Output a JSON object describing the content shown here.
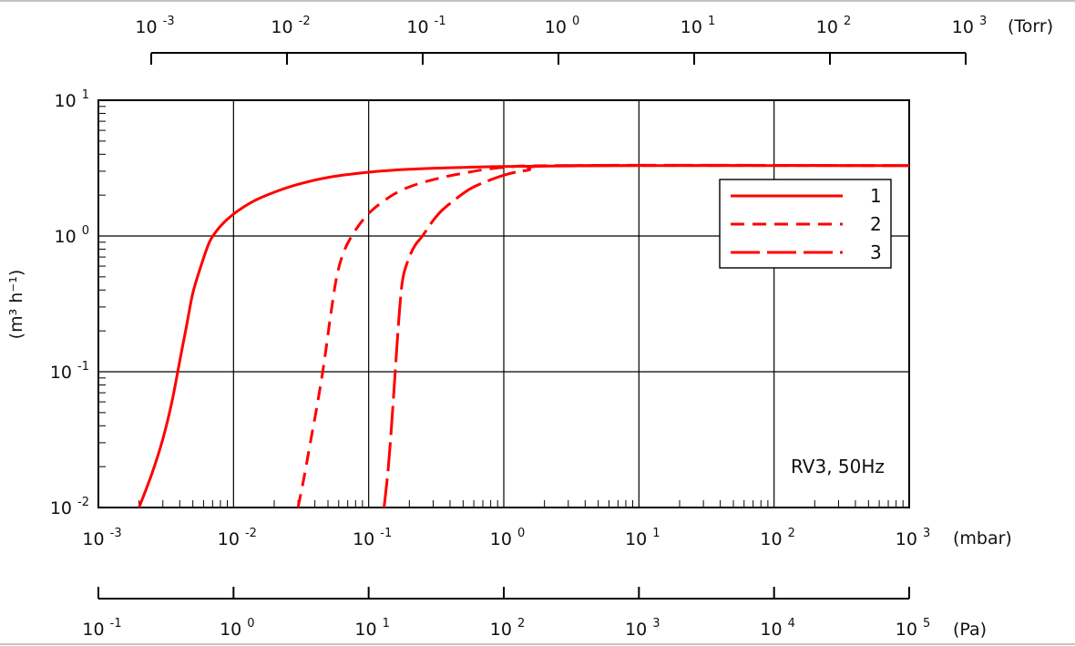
{
  "chart_data": {
    "type": "line",
    "title": "",
    "annotation": "RV3, 50Hz",
    "ylabel": "(m³ h⁻¹)",
    "x_scale": "log",
    "y_scale": "log",
    "xlim": [
      0.001,
      1000
    ],
    "ylim": [
      0.01,
      10
    ],
    "x_unit": "(mbar)",
    "x_ticks": [
      {
        "base": "10",
        "exp": "-3"
      },
      {
        "base": "10",
        "exp": "-2"
      },
      {
        "base": "10",
        "exp": "-1"
      },
      {
        "base": "10",
        "exp": "0"
      },
      {
        "base": "10",
        "exp": "1"
      },
      {
        "base": "10",
        "exp": "2"
      },
      {
        "base": "10",
        "exp": "3"
      }
    ],
    "y_ticks": [
      {
        "base": "10",
        "exp": "-2"
      },
      {
        "base": "10",
        "exp": "-1"
      },
      {
        "base": "10",
        "exp": "0"
      },
      {
        "base": "10",
        "exp": "1"
      }
    ],
    "secondary_axes": [
      {
        "position": "top",
        "unit": "(Torr)",
        "range": [
          0.001,
          1000
        ],
        "ticks": [
          {
            "base": "10",
            "exp": "-3"
          },
          {
            "base": "10",
            "exp": "-2"
          },
          {
            "base": "10",
            "exp": "-1"
          },
          {
            "base": "10",
            "exp": "0"
          },
          {
            "base": "10",
            "exp": "1"
          },
          {
            "base": "10",
            "exp": "2"
          },
          {
            "base": "10",
            "exp": "3"
          }
        ]
      },
      {
        "position": "bottom",
        "unit": "(Pa)",
        "range": [
          0.1,
          100000
        ],
        "ticks": [
          {
            "base": "10",
            "exp": "-1"
          },
          {
            "base": "10",
            "exp": "0"
          },
          {
            "base": "10",
            "exp": "1"
          },
          {
            "base": "10",
            "exp": "2"
          },
          {
            "base": "10",
            "exp": "3"
          },
          {
            "base": "10",
            "exp": "4"
          },
          {
            "base": "10",
            "exp": "5"
          }
        ]
      }
    ],
    "grid": true,
    "legend": {
      "placement": "top-right"
    },
    "series": [
      {
        "name": "1",
        "style": "solid",
        "color": "#ff0000",
        "x": [
          0.002,
          0.0025,
          0.003,
          0.0035,
          0.004,
          0.0045,
          0.005,
          0.0058,
          0.0067,
          0.008,
          0.01,
          0.014,
          0.02,
          0.03,
          0.05,
          0.1,
          0.2,
          0.5,
          1,
          3,
          10,
          100,
          1000
        ],
        "y": [
          0.01,
          0.018,
          0.032,
          0.06,
          0.12,
          0.22,
          0.38,
          0.62,
          0.92,
          1.18,
          1.45,
          1.8,
          2.1,
          2.4,
          2.7,
          2.95,
          3.1,
          3.2,
          3.25,
          3.28,
          3.3,
          3.3,
          3.3
        ]
      },
      {
        "name": "2",
        "style": "dashed",
        "color": "#ff0000",
        "x": [
          0.03,
          0.033,
          0.037,
          0.042,
          0.047,
          0.052,
          0.058,
          0.065,
          0.075,
          0.09,
          0.11,
          0.15,
          0.2,
          0.3,
          0.5,
          1,
          3,
          1000
        ],
        "y": [
          0.01,
          0.016,
          0.03,
          0.06,
          0.12,
          0.25,
          0.5,
          0.75,
          1.0,
          1.3,
          1.6,
          2.0,
          2.3,
          2.6,
          2.9,
          3.2,
          3.3,
          3.3
        ]
      },
      {
        "name": "3",
        "style": "long-dash",
        "color": "#ff0000",
        "x": [
          0.13,
          0.14,
          0.15,
          0.16,
          0.17,
          0.18,
          0.2,
          0.22,
          0.25,
          0.3,
          0.35,
          0.45,
          0.6,
          1,
          1.5,
          3,
          1000
        ],
        "y": [
          0.01,
          0.02,
          0.05,
          0.13,
          0.3,
          0.5,
          0.7,
          0.85,
          1.0,
          1.3,
          1.55,
          1.9,
          2.3,
          2.8,
          3.05,
          3.3,
          3.3
        ]
      }
    ]
  }
}
